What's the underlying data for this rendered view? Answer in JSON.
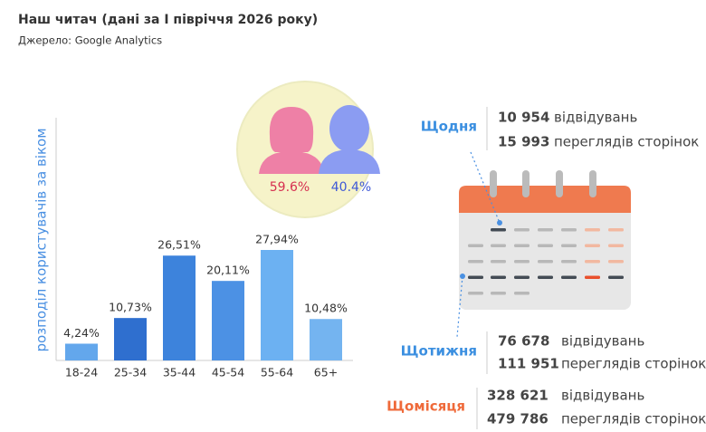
{
  "header": {
    "title": "Наш читач (дані за І півріччя 2026 року)",
    "source": "Джерело: Google Analytics"
  },
  "chart_data": {
    "type": "bar",
    "y_label": "розподіл користувачів за віком",
    "categories": [
      "18-24",
      "25-34",
      "35-44",
      "45-54",
      "55-64",
      "65+"
    ],
    "values": [
      4.24,
      10.73,
      26.51,
      20.11,
      27.94,
      10.48
    ],
    "value_labels": [
      "4,24%",
      "10,73%",
      "26,51%",
      "20,11%",
      "27,94%",
      "10,48%"
    ],
    "colors": [
      "#63a7ec",
      "#2f6fcf",
      "#3d83dc",
      "#4c91e4",
      "#6cb1f2",
      "#74b4f0"
    ],
    "ylim": [
      0,
      30
    ]
  },
  "gender": {
    "female": "59.6%",
    "male": "40.4%"
  },
  "stats": {
    "daily": {
      "label": "Щодня",
      "visits": "10 954",
      "visits_word": "відвідувань",
      "views": "15 993",
      "views_word": "переглядів сторінок"
    },
    "weekly": {
      "label": "Щотижня",
      "visits": "76 678",
      "visits_word": "відвідувань",
      "views": "111 951",
      "views_word": "переглядів сторінок"
    },
    "monthly": {
      "label": "Щомісяця",
      "visits": "328 621",
      "visits_word": "відвідувань",
      "views": "479 786",
      "views_word": "переглядів сторінок"
    }
  }
}
